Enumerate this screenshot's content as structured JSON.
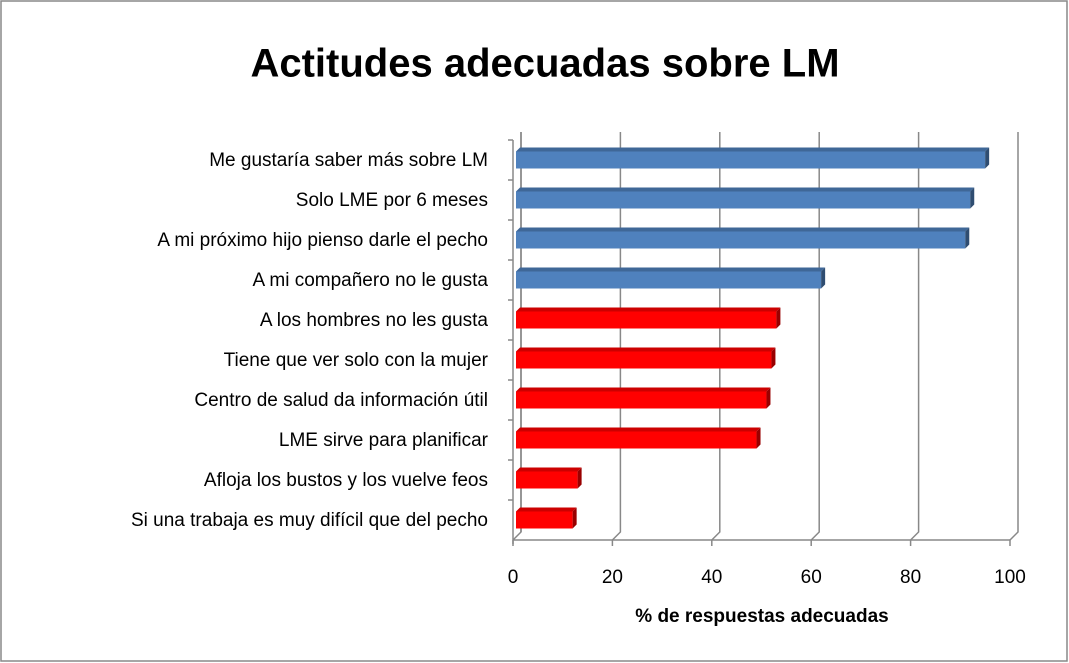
{
  "chart_data": {
    "type": "bar",
    "orientation": "horizontal",
    "title": "Actitudes adecuadas sobre LM",
    "x_label": "% de respuestas adecuadas",
    "categories": [
      "Me gustaría saber más sobre LM",
      "Solo LME por 6 meses",
      "A mi próximo hijo pienso darle el pecho",
      "A mi compañero no le gusta",
      "A los hombres no les gusta",
      "Tiene que ver solo con la mujer",
      "Centro de salud da información útil",
      "LME sirve para planificar",
      "Afloja los bustos y los vuelve feos",
      "Si una trabaja es muy difícil que del pecho"
    ],
    "values": [
      95,
      92,
      91,
      62,
      53,
      52,
      51,
      49,
      13,
      12
    ],
    "colors": [
      "#4f81bd",
      "#4f81bd",
      "#4f81bd",
      "#4f81bd",
      "#ff0000",
      "#ff0000",
      "#ff0000",
      "#ff0000",
      "#ff0000",
      "#ff0000"
    ],
    "xlim": [
      0,
      100
    ],
    "xticks": [
      0,
      20,
      40,
      60,
      80,
      100
    ],
    "grid": true
  }
}
